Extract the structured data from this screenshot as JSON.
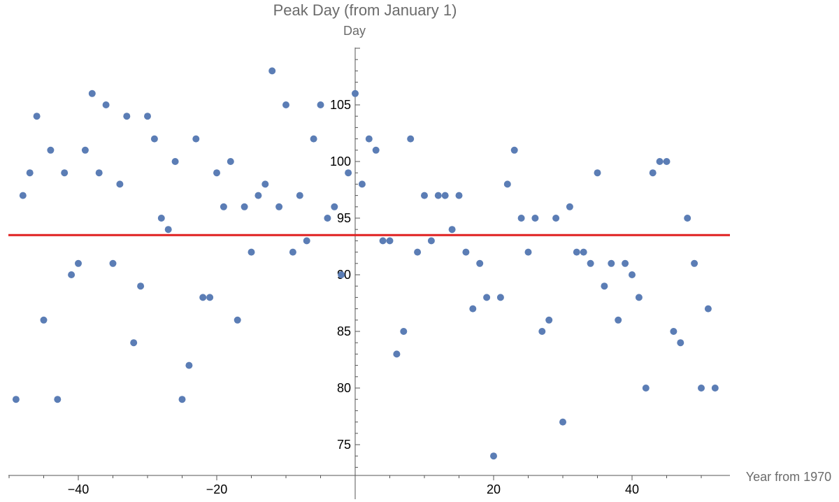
{
  "chart_data": {
    "type": "scatter",
    "title": "Peak Day (from January 1)",
    "xlabel": "Year from 1970",
    "ylabel": "Day",
    "xlim": [
      -50,
      54
    ],
    "ylim": [
      72.5,
      110
    ],
    "x_ticks": [
      -40,
      -20,
      20,
      40
    ],
    "y_ticks": [
      75,
      80,
      85,
      90,
      95,
      100,
      105
    ],
    "grid": false,
    "legend": "none",
    "reference_line": {
      "y": 93.5,
      "color": "#e02020"
    },
    "point_color": "#5b7db5",
    "points": [
      {
        "x": -49,
        "y": 79
      },
      {
        "x": -48,
        "y": 97
      },
      {
        "x": -47,
        "y": 99
      },
      {
        "x": -46,
        "y": 104
      },
      {
        "x": -45,
        "y": 86
      },
      {
        "x": -44,
        "y": 101
      },
      {
        "x": -43,
        "y": 79
      },
      {
        "x": -42,
        "y": 99
      },
      {
        "x": -41,
        "y": 90
      },
      {
        "x": -40,
        "y": 91
      },
      {
        "x": -39,
        "y": 101
      },
      {
        "x": -38,
        "y": 106
      },
      {
        "x": -37,
        "y": 99
      },
      {
        "x": -36,
        "y": 105
      },
      {
        "x": -35,
        "y": 91
      },
      {
        "x": -34,
        "y": 98
      },
      {
        "x": -33,
        "y": 104
      },
      {
        "x": -32,
        "y": 84
      },
      {
        "x": -31,
        "y": 89
      },
      {
        "x": -30,
        "y": 104
      },
      {
        "x": -29,
        "y": 102
      },
      {
        "x": -28,
        "y": 95
      },
      {
        "x": -27,
        "y": 94
      },
      {
        "x": -26,
        "y": 100
      },
      {
        "x": -25,
        "y": 79
      },
      {
        "x": -24,
        "y": 82
      },
      {
        "x": -23,
        "y": 102
      },
      {
        "x": -22,
        "y": 88
      },
      {
        "x": -21,
        "y": 88
      },
      {
        "x": -20,
        "y": 99
      },
      {
        "x": -19,
        "y": 96
      },
      {
        "x": -18,
        "y": 100
      },
      {
        "x": -17,
        "y": 86
      },
      {
        "x": -16,
        "y": 96
      },
      {
        "x": -15,
        "y": 92
      },
      {
        "x": -14,
        "y": 97
      },
      {
        "x": -13,
        "y": 98
      },
      {
        "x": -12,
        "y": 108
      },
      {
        "x": -11,
        "y": 96
      },
      {
        "x": -10,
        "y": 105
      },
      {
        "x": -9,
        "y": 92
      },
      {
        "x": -8,
        "y": 97
      },
      {
        "x": -7,
        "y": 93
      },
      {
        "x": -6,
        "y": 102
      },
      {
        "x": -5,
        "y": 105
      },
      {
        "x": -4,
        "y": 95
      },
      {
        "x": -3,
        "y": 96
      },
      {
        "x": -2,
        "y": 90
      },
      {
        "x": -1,
        "y": 99
      },
      {
        "x": 0,
        "y": 106
      },
      {
        "x": 1,
        "y": 98
      },
      {
        "x": 2,
        "y": 102
      },
      {
        "x": 3,
        "y": 101
      },
      {
        "x": 4,
        "y": 93
      },
      {
        "x": 5,
        "y": 93
      },
      {
        "x": 6,
        "y": 83
      },
      {
        "x": 7,
        "y": 85
      },
      {
        "x": 8,
        "y": 102
      },
      {
        "x": 9,
        "y": 92
      },
      {
        "x": 10,
        "y": 97
      },
      {
        "x": 11,
        "y": 93
      },
      {
        "x": 12,
        "y": 97
      },
      {
        "x": 13,
        "y": 97
      },
      {
        "x": 14,
        "y": 94
      },
      {
        "x": 15,
        "y": 97
      },
      {
        "x": 16,
        "y": 92
      },
      {
        "x": 17,
        "y": 87
      },
      {
        "x": 18,
        "y": 91
      },
      {
        "x": 19,
        "y": 88
      },
      {
        "x": 20,
        "y": 74
      },
      {
        "x": 21,
        "y": 88
      },
      {
        "x": 22,
        "y": 98
      },
      {
        "x": 23,
        "y": 101
      },
      {
        "x": 24,
        "y": 95
      },
      {
        "x": 25,
        "y": 92
      },
      {
        "x": 26,
        "y": 95
      },
      {
        "x": 27,
        "y": 85
      },
      {
        "x": 28,
        "y": 86
      },
      {
        "x": 29,
        "y": 95
      },
      {
        "x": 30,
        "y": 77
      },
      {
        "x": 31,
        "y": 96
      },
      {
        "x": 32,
        "y": 92
      },
      {
        "x": 33,
        "y": 92
      },
      {
        "x": 34,
        "y": 91
      },
      {
        "x": 35,
        "y": 99
      },
      {
        "x": 36,
        "y": 89
      },
      {
        "x": 37,
        "y": 91
      },
      {
        "x": 38,
        "y": 86
      },
      {
        "x": 39,
        "y": 91
      },
      {
        "x": 40,
        "y": 90
      },
      {
        "x": 41,
        "y": 88
      },
      {
        "x": 42,
        "y": 80
      },
      {
        "x": 43,
        "y": 99
      },
      {
        "x": 44,
        "y": 100
      },
      {
        "x": 45,
        "y": 100
      },
      {
        "x": 46,
        "y": 85
      },
      {
        "x": 47,
        "y": 84
      },
      {
        "x": 48,
        "y": 95
      },
      {
        "x": 49,
        "y": 91
      },
      {
        "x": 50,
        "y": 80
      },
      {
        "x": 51,
        "y": 87
      },
      {
        "x": 52,
        "y": 80
      }
    ]
  }
}
